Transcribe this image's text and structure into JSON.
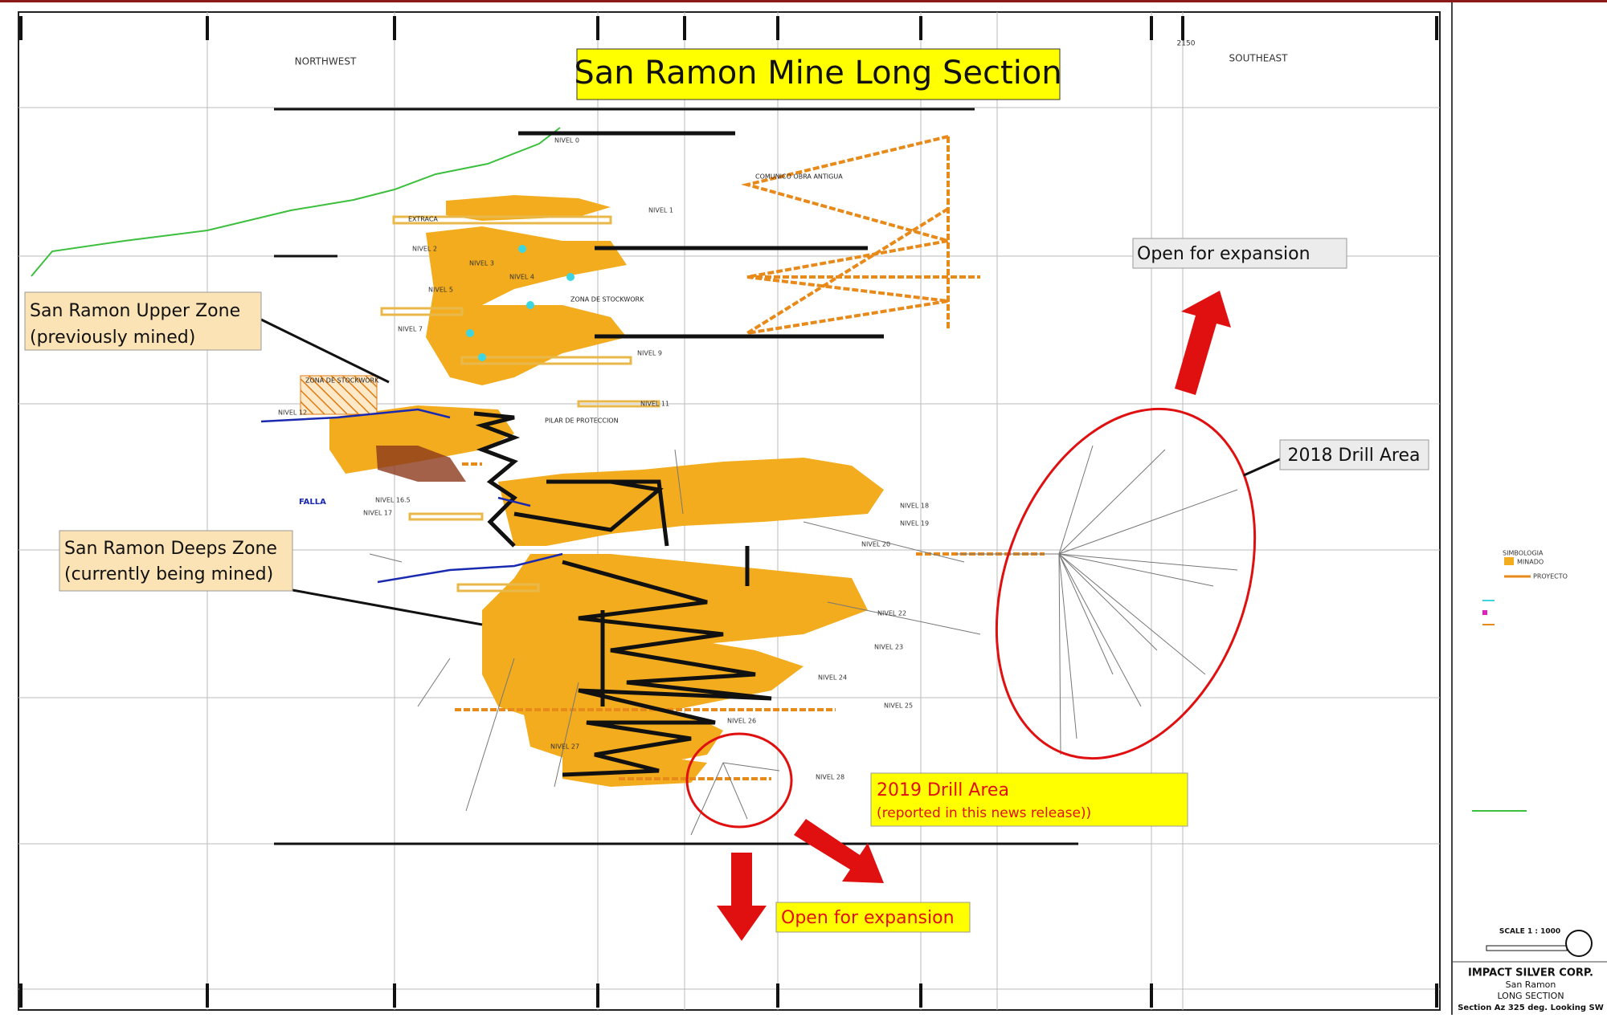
{
  "header": {
    "title": "San Ramon Mine Long Section"
  },
  "labels": {
    "northwest": "NORTHWEST",
    "southeast": "SOUTHEAST",
    "grid_ref": "2150"
  },
  "callouts": {
    "upper_zone": [
      "San Ramon Upper Zone",
      "(previously mined)"
    ],
    "deeps_zone": [
      "San Ramon Deeps Zone",
      "(currently being mined)"
    ],
    "drill_2018": "2018 Drill Area",
    "drill_2019": [
      "2019 Drill Area",
      "(reported in this news release))"
    ],
    "expansion_upper": "Open for expansion",
    "expansion_lower": "Open for expansion"
  },
  "levels": [
    "NIVEL 0",
    "NIVEL 1",
    "NIVEL 2",
    "NIVEL 3",
    "NIVEL 4",
    "NIVEL 5",
    "NIVEL 7",
    "NIVEL 9",
    "NIVEL 11",
    "NIVEL 12",
    "NIVEL 16.5",
    "NIVEL 17",
    "NIVEL 18",
    "NIVEL 19",
    "NIVEL 20",
    "NIVEL 22",
    "NIVEL 23",
    "NIVEL 24",
    "NIVEL 25",
    "NIVEL 26",
    "NIVEL 27",
    "NIVEL 28"
  ],
  "features": [
    "COMUNICO OBRA ANTIGUA",
    "ZONA DE STOCKWORK",
    "PILAR DE PROTECCION",
    "FALLA",
    "EXTRACA",
    "ZONA DE STOCKWORK"
  ],
  "legend": {
    "title": "SIMBOLOGIA",
    "items": [
      "MINADO",
      "PROYECTO"
    ]
  },
  "scale": "SCALE 1 : 1000",
  "title_block": [
    "IMPACT SILVER CORP.",
    "San Ramon",
    "LONG SECTION",
    "Section Az 325 deg.  Looking SW"
  ]
}
